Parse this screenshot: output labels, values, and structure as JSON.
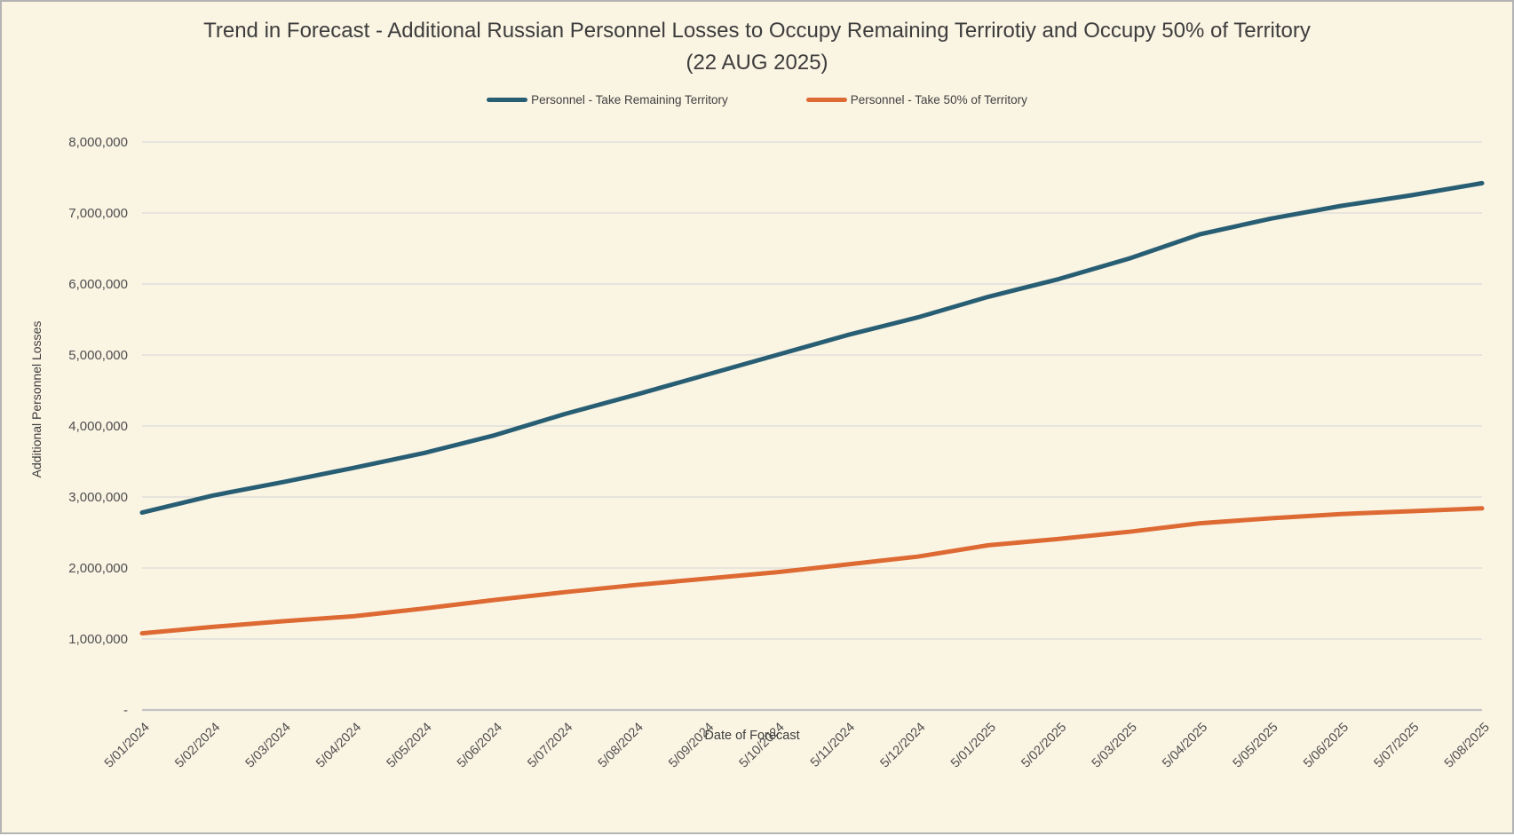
{
  "title": {
    "line1": "Trend in Forecast - Additional Russian Personnel Losses to Occupy Remaining Terrirotiy and Occupy 50% of Territory",
    "line2": "(22 AUG 2025)"
  },
  "colors": {
    "background": "#faf4e3",
    "frame_border": "#b3b3b3",
    "gridline": "#d9d9d9",
    "axis_line": "#c3c3c3",
    "title_text": "#3d3d3d",
    "tick_text": "#4e4e4e",
    "series_remaining": "#285e74",
    "series_50pct": "#de6a33"
  },
  "chart_data": {
    "type": "line",
    "title": "Trend in Forecast - Additional Russian Personnel Losses to Occupy Remaining Terrirotiy and Occupy 50% of Territory (22 AUG 2025)",
    "categories": [
      "5/01/2024",
      "5/02/2024",
      "5/03/2024",
      "5/04/2024",
      "5/05/2024",
      "5/06/2024",
      "5/07/2024",
      "5/08/2024",
      "5/09/2024",
      "5/10/2024",
      "5/11/2024",
      "5/12/2024",
      "5/01/2025",
      "5/02/2025",
      "5/03/2025",
      "5/04/2025",
      "5/05/2025",
      "5/06/2025",
      "5/07/2025",
      "5/08/2025"
    ],
    "series": [
      {
        "name": "Personnel - Take Remaining Territory",
        "color": "#285e74",
        "values": [
          2780000,
          3020000,
          3210000,
          3410000,
          3620000,
          3870000,
          4170000,
          4440000,
          4720000,
          5000000,
          5280000,
          5530000,
          5820000,
          6070000,
          6360000,
          6700000,
          6920000,
          7100000,
          7250000,
          7420000
        ]
      },
      {
        "name": "Personnel - Take 50% of Territory",
        "color": "#de6a33",
        "values": [
          1080000,
          1170000,
          1250000,
          1320000,
          1430000,
          1550000,
          1660000,
          1760000,
          1850000,
          1940000,
          2050000,
          2160000,
          2320000,
          2410000,
          2510000,
          2630000,
          2700000,
          2760000,
          2800000,
          2840000
        ]
      }
    ],
    "xlabel": "Date of Forecast",
    "ylabel": "Additional Personnel Losses",
    "ylim": [
      0,
      8000000
    ],
    "y_tick_step": 1000000,
    "y_tick_labels": [
      "-",
      "1,000,000",
      "2,000,000",
      "3,000,000",
      "4,000,000",
      "5,000,000",
      "6,000,000",
      "7,000,000",
      "8,000,000"
    ],
    "grid": true,
    "legend_position": "top"
  }
}
